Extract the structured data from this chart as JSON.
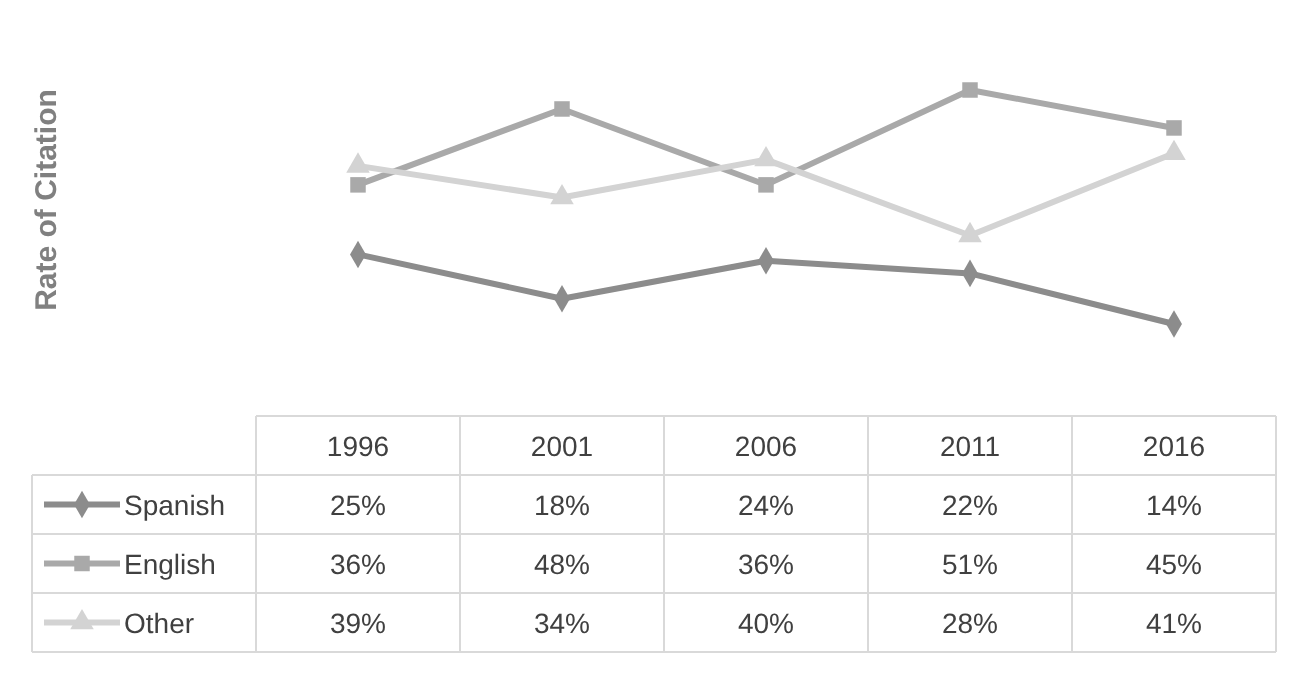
{
  "chart_data": {
    "type": "line",
    "annotations": [
      "Rate of Citation"
    ],
    "categories": [
      "1996",
      "2001",
      "2006",
      "2011",
      "2016"
    ],
    "data_labels": true,
    "legend": "bottom left",
    "series": [
      {
        "name": "Spanish",
        "color": "#8c8c8c",
        "marker": "diamond",
        "values": [
          25,
          18,
          24,
          22,
          14
        ],
        "value_labels": [
          "25%",
          "18%",
          "24%",
          "22%",
          "14%"
        ]
      },
      {
        "name": "English",
        "color": "#a9a9a9",
        "marker": "square",
        "values": [
          36,
          48,
          36,
          51,
          45
        ],
        "value_labels": [
          "36%",
          "48%",
          "36%",
          "51%",
          "45%"
        ]
      },
      {
        "name": "Other",
        "color": "#d3d3d3",
        "marker": "triangle",
        "values": [
          39,
          34,
          40,
          28,
          41
        ],
        "value_labels": [
          "39%",
          "34%",
          "40%",
          "28%",
          "41%"
        ]
      }
    ]
  }
}
